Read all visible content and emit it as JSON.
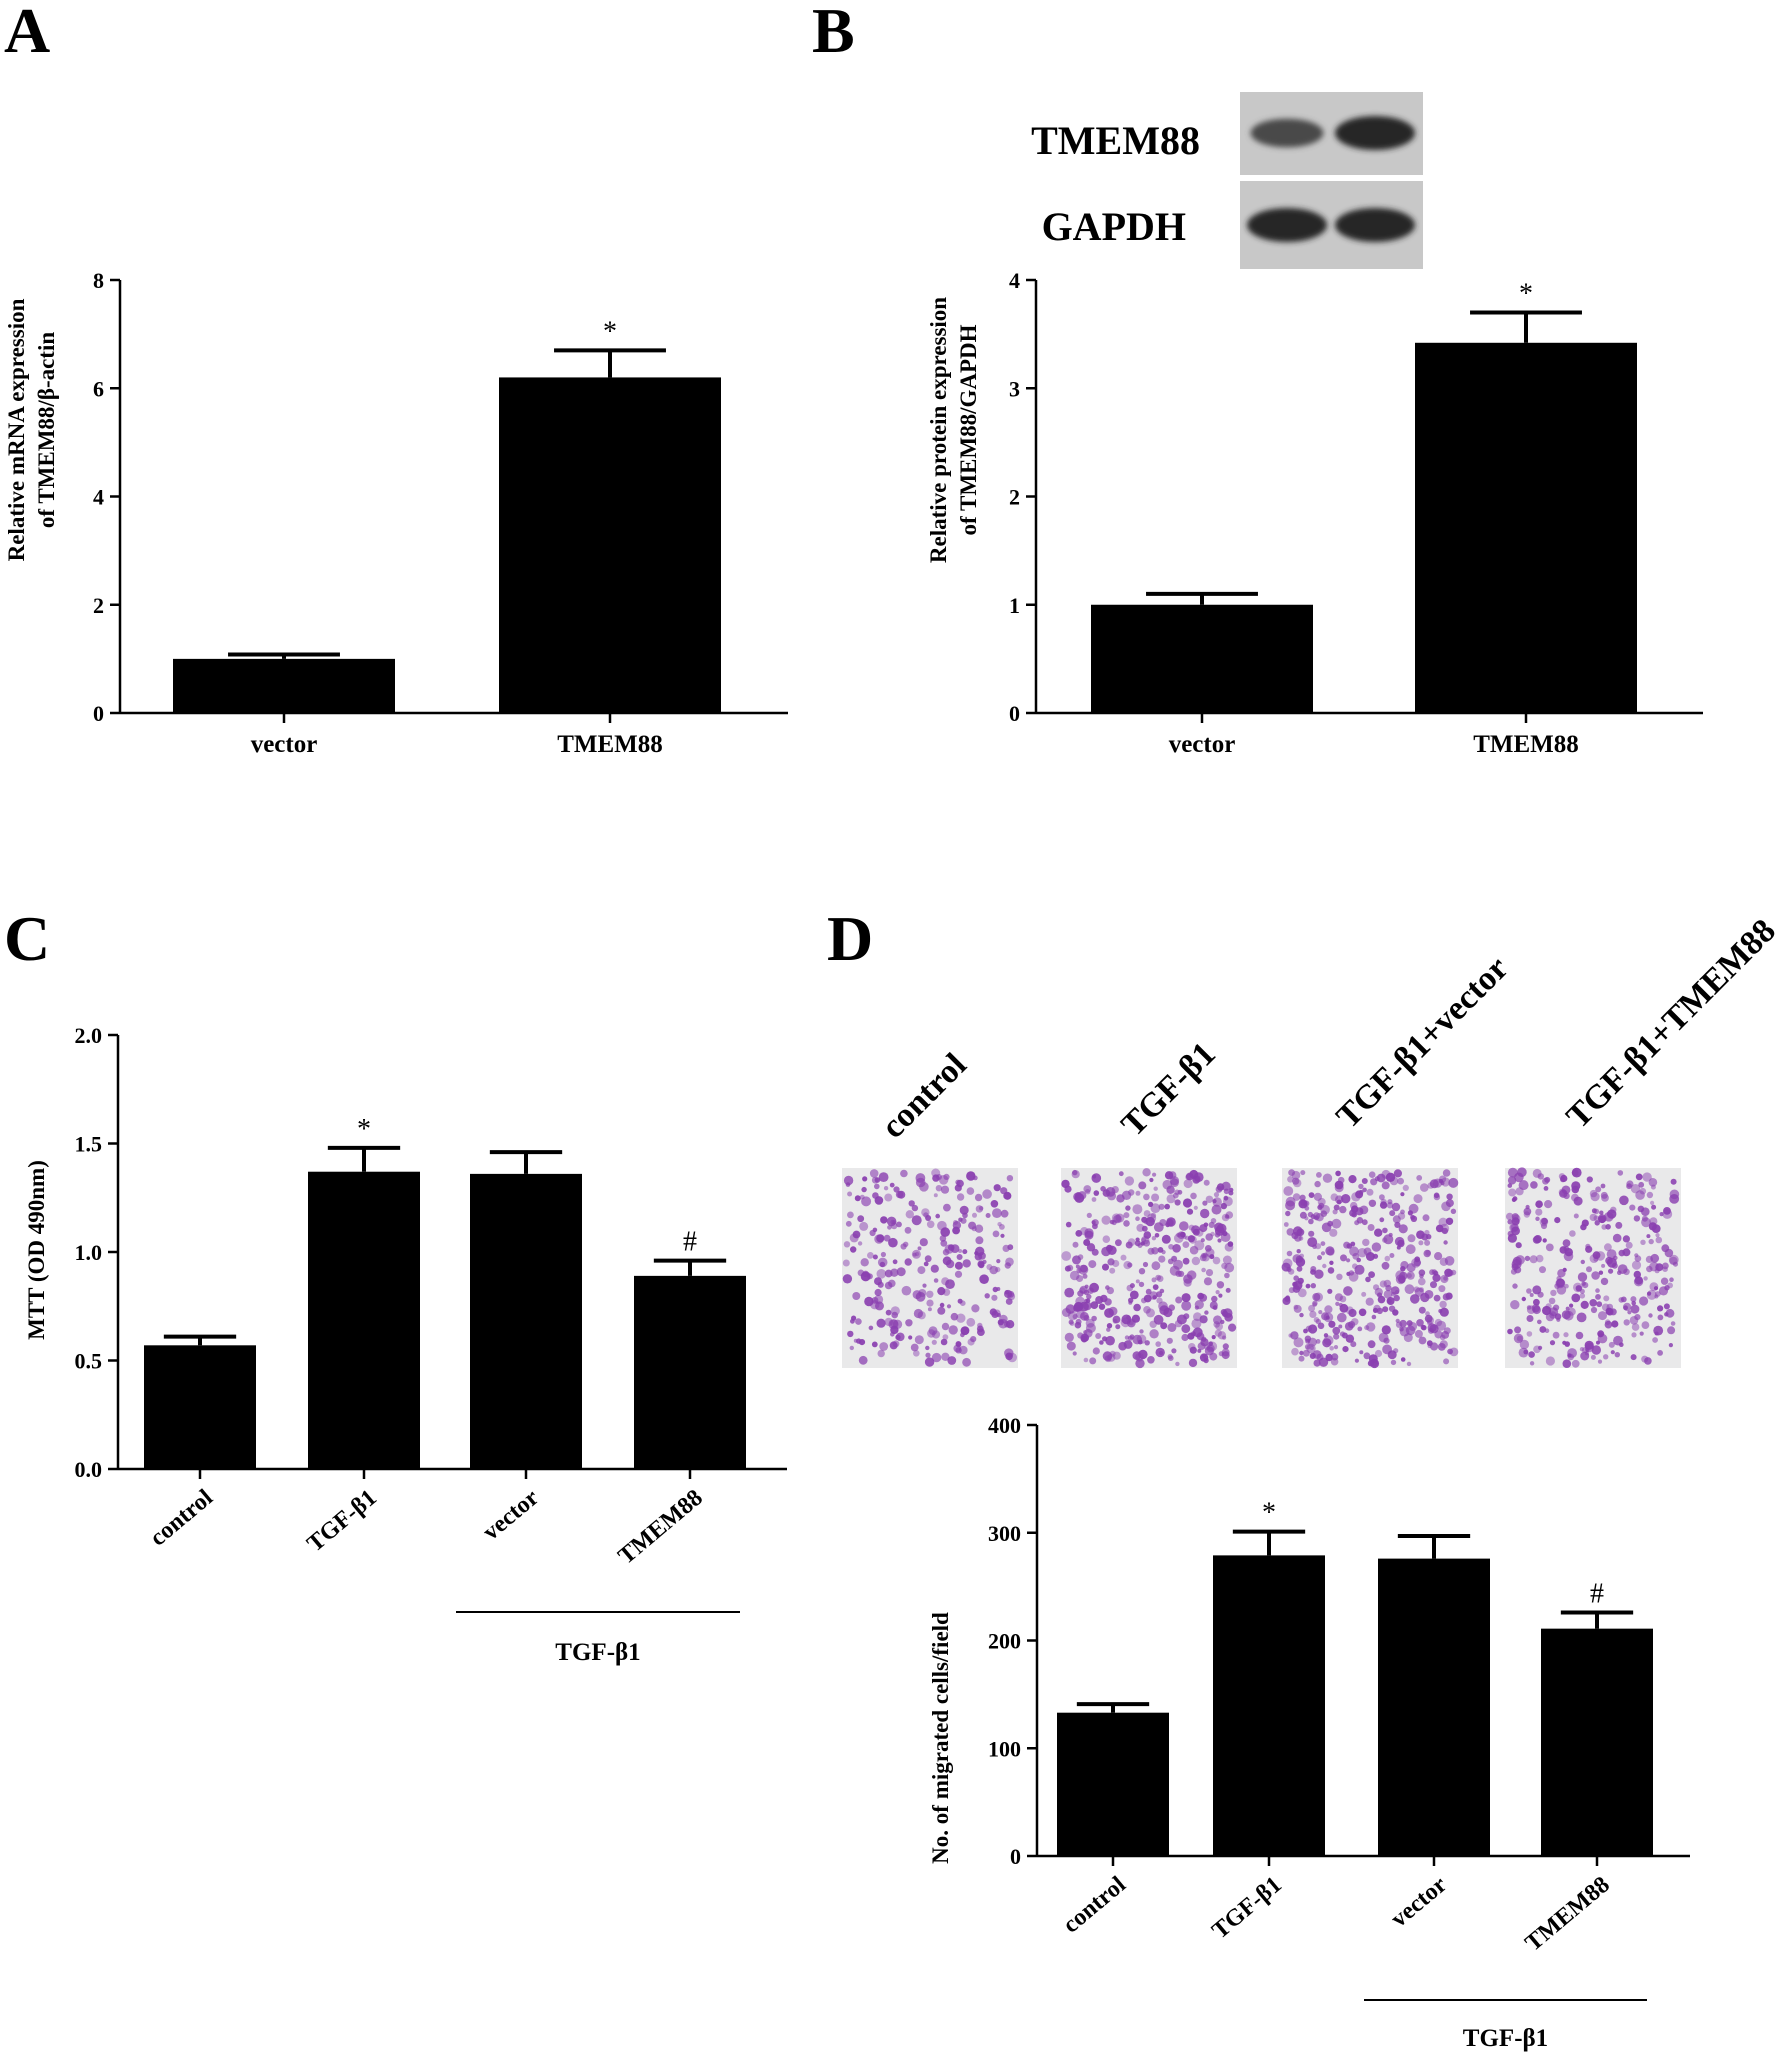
{
  "figure": {
    "panels": [
      "A",
      "B",
      "C",
      "D"
    ]
  },
  "chart_data": [
    {
      "panel": "A",
      "type": "bar",
      "categories": [
        "vector",
        "TMEM88"
      ],
      "values": [
        1.0,
        6.2
      ],
      "errors": [
        0.08,
        0.5
      ],
      "significance": [
        "",
        "*"
      ],
      "ylabel": "Relative mRNA expression of TMEM88/β-actin",
      "ylabel_lines": [
        "Relative mRNA expression",
        "of TMEM88/β-actin"
      ],
      "ylim": [
        0,
        8
      ],
      "yticks": [
        0,
        2,
        4,
        6,
        8
      ],
      "ytick_labels": [
        "0",
        "2",
        "4",
        "6",
        "8"
      ],
      "bar_color": "#000000",
      "grid": false
    },
    {
      "panel": "B",
      "type": "bar",
      "categories": [
        "vector",
        "TMEM88"
      ],
      "values": [
        1.0,
        3.42
      ],
      "errors": [
        0.1,
        0.28
      ],
      "significance": [
        "",
        "*"
      ],
      "ylabel": "Relative protein expression of TMEM88/GAPDH",
      "ylabel_lines": [
        "Relative protein expression",
        "of TMEM88/GAPDH"
      ],
      "ylim": [
        0,
        4
      ],
      "yticks": [
        0,
        1,
        2,
        3,
        4
      ],
      "ytick_labels": [
        "0",
        "1",
        "2",
        "3",
        "4"
      ],
      "bar_color": "#000000",
      "grid": false,
      "western_blot": {
        "rows": [
          "TMEM88",
          "GAPDH"
        ],
        "band_intensity": [
          [
            0.55,
            1.0
          ],
          [
            1.0,
            1.0
          ]
        ]
      }
    },
    {
      "panel": "C",
      "type": "bar",
      "categories": [
        "control",
        "TGF-β1",
        "vector",
        "TMEM88"
      ],
      "values": [
        0.57,
        1.37,
        1.36,
        0.89
      ],
      "errors": [
        0.04,
        0.11,
        0.1,
        0.07
      ],
      "significance": [
        "",
        "*",
        "",
        "#"
      ],
      "ylabel": "MTT (OD 490nm)",
      "ylim": [
        0,
        2.0
      ],
      "yticks": [
        0,
        0.5,
        1.0,
        1.5,
        2.0
      ],
      "ytick_labels": [
        "0.0",
        "0.5",
        "1.0",
        "1.5",
        "2.0"
      ],
      "group_label": "TGF-β1",
      "group_span": [
        2,
        3
      ],
      "bar_color": "#000000",
      "grid": false
    },
    {
      "panel": "D",
      "type": "bar",
      "categories": [
        "control",
        "TGF-β1",
        "vector",
        "TMEM88"
      ],
      "values": [
        133,
        279,
        276,
        211
      ],
      "errors": [
        8,
        22,
        21,
        15
      ],
      "significance": [
        "",
        "*",
        "",
        "#"
      ],
      "ylabel": "No. of migrated cells/field",
      "ylim": [
        0,
        400
      ],
      "yticks": [
        0,
        100,
        200,
        300,
        400
      ],
      "ytick_labels": [
        "0",
        "100",
        "200",
        "300",
        "400"
      ],
      "group_label": "TGF-β1",
      "group_span": [
        2,
        3
      ],
      "bar_color": "#000000",
      "grid": false,
      "images": {
        "labels": [
          "control",
          "TGF-β1",
          "TGF-β1+vector",
          "TGF-β1+TMEM88"
        ],
        "cell_density": [
          0.5,
          0.9,
          0.88,
          0.65
        ],
        "stain_color": "#8a3fb0",
        "background_color": "#e9e9ea"
      }
    }
  ]
}
